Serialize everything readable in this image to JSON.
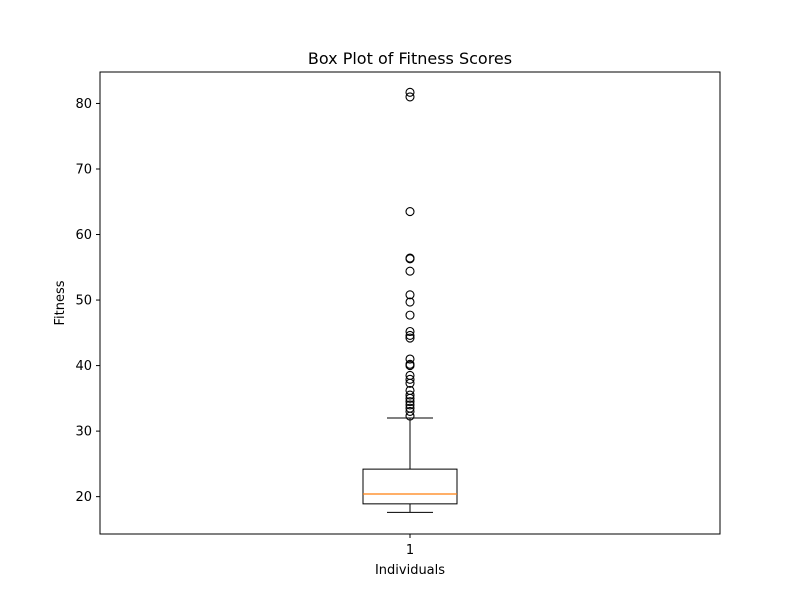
{
  "chart_data": {
    "type": "box",
    "title": "Box Plot of Fitness Scores",
    "xlabel": "Individuals",
    "ylabel": "Fitness",
    "categories": [
      "1"
    ],
    "ylim": [
      14.3,
      84.8
    ],
    "yticks": [
      20,
      30,
      40,
      50,
      60,
      70,
      80
    ],
    "grid": false,
    "box": {
      "whisker_low": 17.6,
      "q1": 18.9,
      "median": 20.4,
      "q3": 24.2,
      "whisker_high": 32.0
    },
    "outliers": [
      32.3,
      33.0,
      33.5,
      34.0,
      34.5,
      35.0,
      35.5,
      36.2,
      37.3,
      37.9,
      38.5,
      40.0,
      40.2,
      41.0,
      44.2,
      44.6,
      45.2,
      47.7,
      49.7,
      50.8,
      54.4,
      56.3,
      56.4,
      63.5,
      81.0,
      81.7
    ],
    "colors": {
      "box": "#000000",
      "median": "#ff7f0e",
      "outlier": "#000000"
    }
  }
}
